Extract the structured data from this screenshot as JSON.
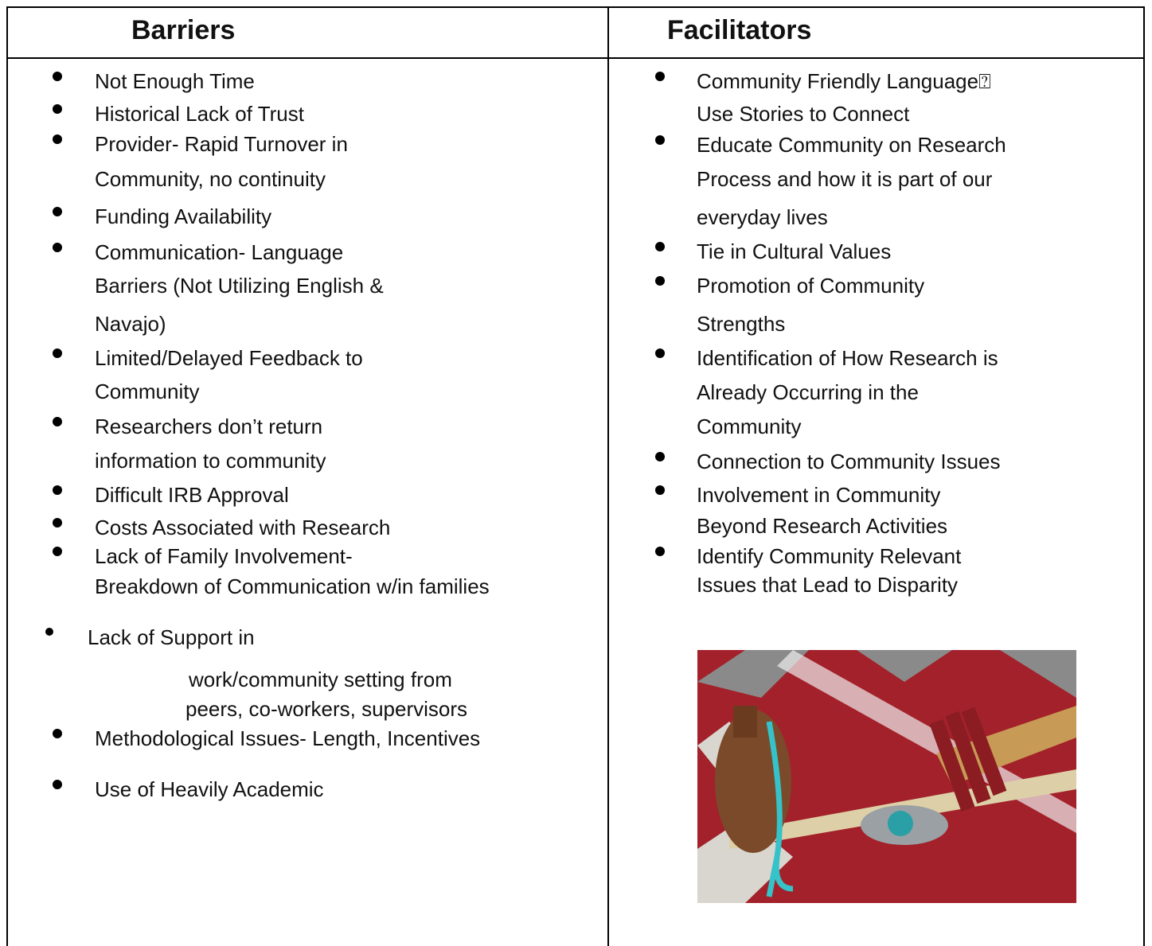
{
  "table": {
    "headers": [
      "Barriers",
      "Facilitators"
    ],
    "columns": [
      [
        [
          "Not Enough Time"
        ],
        [
          "Historical Lack of Trust"
        ],
        [
          "Provider- Rapid Turnover in",
          "Community, no continuity"
        ],
        [
          "Funding Availability"
        ],
        [
          "Communication- Language",
          "Barriers (Not Utilizing English &",
          "Navajo)"
        ],
        [
          "Limited/Delayed Feedback to",
          "Community"
        ],
        [
          "Researchers don’t return",
          "information to community"
        ],
        [
          "Difficult IRB Approval"
        ],
        [
          "Costs Associated with Research"
        ],
        [
          "Lack of Family Involvement-",
          "Breakdown of Communication w/in families"
        ],
        [
          "Lack of Support in",
          "work/community setting from",
          "peers, co-workers, supervisors"
        ],
        [
          "Methodological Issues- Length, Incentives"
        ],
        [
          "Use of Heavily Academic"
        ]
      ],
      [
        [
          "Community Friendly Language⍰",
          "Use Stories to Connect"
        ],
        [
          "Educate Community on Research",
          "Process and how it is part of our",
          "everyday lives"
        ],
        [
          "Tie in Cultural Values"
        ],
        [
          "Promotion of Community",
          "Strengths"
        ],
        [
          "Identification of How Research is",
          "Already Occurring in the",
          "Community"
        ],
        [
          "Connection to Community Issues"
        ],
        [
          "Involvement in Community",
          "Beyond Research Activities"
        ],
        [
          "Identify Community Relevant",
          "Issues that Lead to Disparity"
        ]
      ]
    ]
  }
}
